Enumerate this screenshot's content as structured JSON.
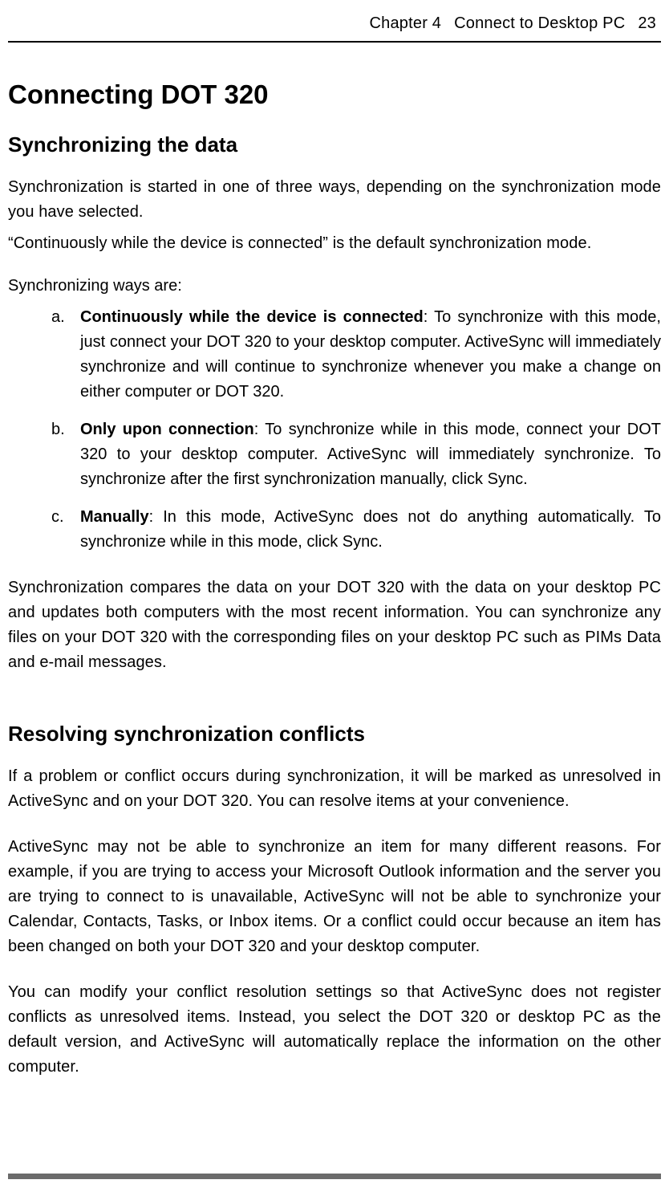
{
  "header": {
    "chapter_label": "Chapter 4",
    "chapter_title": "Connect to Desktop PC",
    "page_number": "23"
  },
  "h1": "Connecting DOT 320",
  "section1": {
    "heading": "Synchronizing the data",
    "intro1": "Synchronization is started in one of three ways, depending on the synchronization mode you have selected.",
    "intro2": "“Continuously while the device is connected” is the default synchronization mode.",
    "ways_label": "Synchronizing ways are:",
    "items": [
      {
        "marker": "a.",
        "bold": "Continuously while the device is connected",
        "rest": ": To synchronize with this mode, just connect your DOT 320 to your desktop computer. ActiveSync will immediately synchronize and will continue to synchronize whenever you make a change on either computer or DOT 320."
      },
      {
        "marker": "b.",
        "bold": "Only upon connection",
        "rest": ": To synchronize while in this mode, connect your DOT 320 to your desktop computer. ActiveSync will immediately synchronize. To synchronize after the first synchronization manually, click Sync."
      },
      {
        "marker": "c.",
        "bold": "Manually",
        "rest": ": In this mode, ActiveSync does not do anything automatically. To synchronize while in this mode, click Sync."
      }
    ],
    "closing": "Synchronization compares the data on your DOT 320 with the data on your desktop PC and updates both computers with the most recent information. You can synchronize any files on your DOT 320 with the corresponding files on your desktop PC such as PIMs Data and e-mail messages."
  },
  "section2": {
    "heading": "Resolving synchronization conflicts",
    "p1": "If a problem or conflict occurs during synchronization, it will be marked as unresolved in ActiveSync and on your DOT 320. You can resolve items at your convenience.",
    "p2": "ActiveSync may not be able to synchronize an item for many different reasons. For example, if you are trying to access your Microsoft Outlook information and the server you are trying to connect to is unavailable, ActiveSync will not be able to synchronize your Calendar, Contacts, Tasks, or Inbox items. Or a conflict could occur because an item has been changed on both your DOT 320 and your desktop computer.",
    "p3": "You can modify your conflict resolution settings so that ActiveSync does not register conflicts as unresolved items. Instead, you select the DOT 320 or desktop PC as the default version, and ActiveSync will automatically replace the information on the other computer."
  },
  "colors": {
    "text": "#000000",
    "rule": "#000000",
    "footer_bar": "#6b6b6b",
    "background": "#ffffff"
  },
  "typography": {
    "body_fontsize_pt": 15,
    "h1_fontsize_pt": 25,
    "h2_fontsize_pt": 20,
    "line_height": 1.55,
    "font_family": "Futura / Century Gothic (geometric sans)"
  }
}
